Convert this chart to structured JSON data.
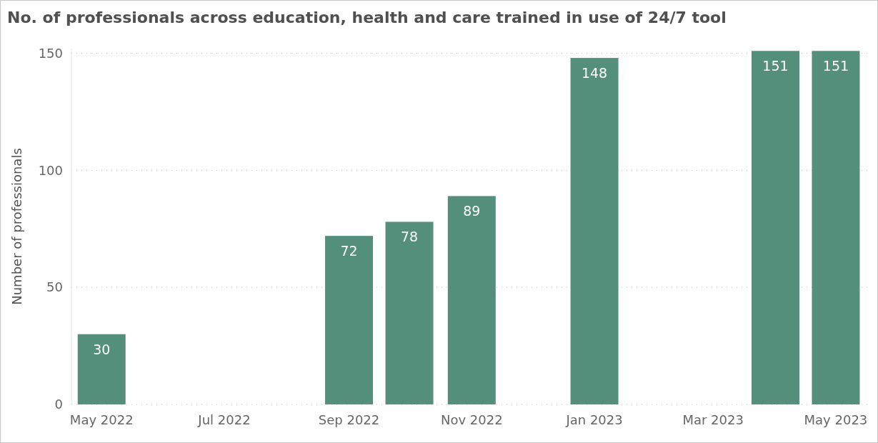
{
  "chart_data": {
    "type": "bar",
    "title": "No. of professionals across education, health and care trained in use of 24/7 tool",
    "ylabel": "Number of professionals",
    "x": [
      "2022-05",
      "2022-09",
      "2022-10",
      "2022-11",
      "2023-01",
      "2023-04",
      "2023-05"
    ],
    "values": [
      30,
      72,
      78,
      89,
      148,
      151,
      151
    ],
    "color": "#548f7b",
    "xlim": [
      "2022-04-16",
      "2023-05-17"
    ],
    "xticks": [
      {
        "value": "2022-05",
        "label": "May 2022"
      },
      {
        "value": "2022-07",
        "label": "Jul 2022"
      },
      {
        "value": "2022-09",
        "label": "Sep 2022"
      },
      {
        "value": "2022-11",
        "label": "Nov 2022"
      },
      {
        "value": "2023-01",
        "label": "Jan 2023"
      },
      {
        "value": "2023-03",
        "label": "Mar 2023"
      },
      {
        "value": "2023-05",
        "label": "May 2023"
      }
    ],
    "ylim": [
      0,
      152
    ],
    "yticks": [
      0,
      50,
      100,
      150
    ],
    "grid": "y",
    "data_labels": true
  }
}
